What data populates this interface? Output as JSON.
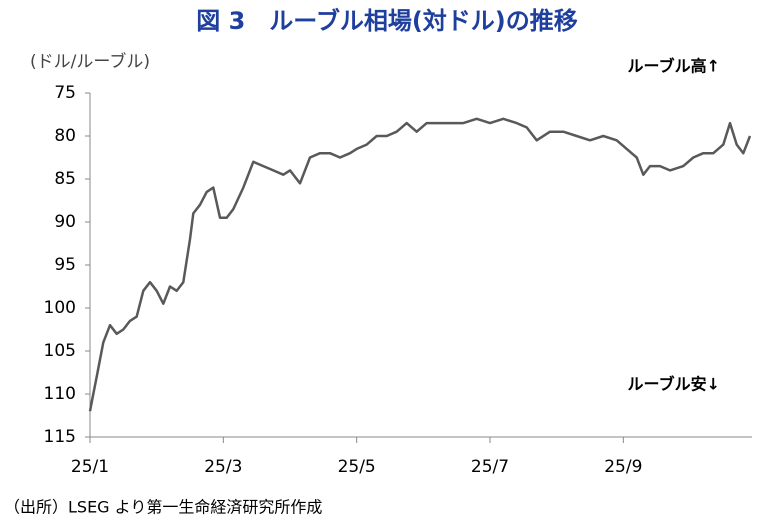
{
  "chart_data": {
    "type": "line",
    "title": "図 3　ルーブル相場(対ドル)の推移",
    "y_label": "(ドル/ルーブル)",
    "annotations": [
      "ルーブル高↑",
      "ルーブル安↓"
    ],
    "source": "（出所）LSEG より第一生命経済研究所作成",
    "color": "#595959",
    "y_inverted": true,
    "xlim": [
      1,
      10.93
    ],
    "xticks": [
      {
        "value": 1,
        "label": "25/1"
      },
      {
        "value": 3,
        "label": "25/3"
      },
      {
        "value": 5,
        "label": "25/5"
      },
      {
        "value": 7,
        "label": "25/7"
      },
      {
        "value": 9,
        "label": "25/9"
      }
    ],
    "ylim": [
      75,
      115
    ],
    "yticks": [
      75,
      80,
      85,
      90,
      95,
      100,
      105,
      110,
      115
    ],
    "x": [
      1.0,
      1.05,
      1.1,
      1.2,
      1.3,
      1.4,
      1.5,
      1.6,
      1.7,
      1.8,
      1.9,
      2.0,
      2.1,
      2.2,
      2.3,
      2.4,
      2.5,
      2.55,
      2.65,
      2.75,
      2.85,
      2.95,
      3.05,
      3.15,
      3.3,
      3.45,
      3.6,
      3.75,
      3.9,
      4.0,
      4.15,
      4.3,
      4.45,
      4.6,
      4.75,
      4.9,
      5.0,
      5.15,
      5.3,
      5.45,
      5.6,
      5.75,
      5.9,
      6.05,
      6.2,
      6.4,
      6.6,
      6.8,
      7.0,
      7.2,
      7.4,
      7.55,
      7.7,
      7.9,
      8.1,
      8.3,
      8.5,
      8.7,
      8.9,
      9.05,
      9.2,
      9.3,
      9.4,
      9.55,
      9.7,
      9.9,
      10.05,
      10.2,
      10.35,
      10.5,
      10.6,
      10.7,
      10.8,
      10.9
    ],
    "values": [
      112,
      110,
      108,
      104,
      102,
      103,
      102.5,
      101.5,
      101,
      98,
      97,
      98,
      99.5,
      97.5,
      98,
      97,
      92,
      89,
      88,
      86.5,
      86,
      89.5,
      89.5,
      88.5,
      86,
      83,
      83.5,
      84,
      84.5,
      84,
      85.5,
      82.5,
      82,
      82,
      82.5,
      82,
      81.5,
      81,
      80,
      80,
      79.5,
      78.5,
      79.5,
      78.5,
      78.5,
      78.5,
      78.5,
      78,
      78.5,
      78,
      78.5,
      79,
      80.5,
      79.5,
      79.5,
      80,
      80.5,
      80,
      80.5,
      81.5,
      82.5,
      84.5,
      83.5,
      83.5,
      84,
      83.5,
      82.5,
      82,
      82,
      81,
      78.5,
      81,
      82,
      80
    ]
  }
}
